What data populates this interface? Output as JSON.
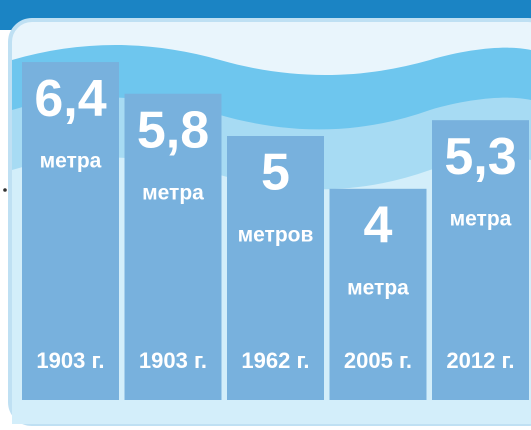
{
  "chart_data": {
    "type": "bar",
    "categories": [
      "1903 г.",
      "1903 г.",
      "1962 г.",
      "2005 г.",
      "2012 г."
    ],
    "values": [
      6.4,
      5.8,
      5,
      4,
      5.3
    ],
    "value_labels": [
      "6,4",
      "5,8",
      "5",
      "4",
      "5,3"
    ],
    "units": [
      "метра",
      "метра",
      "метров",
      "метра",
      "метра"
    ],
    "color": "#78b1dd"
  }
}
